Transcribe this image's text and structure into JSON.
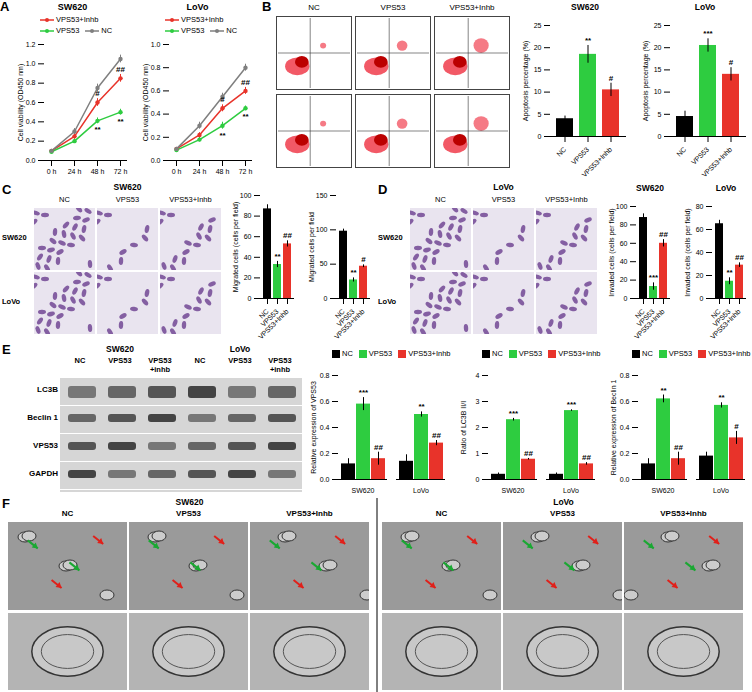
{
  "chart_data": [
    {
      "type": "line",
      "title": "SW620",
      "x": [
        "0 h",
        "24 h",
        "48 h",
        "72 h"
      ],
      "y_label": "Cell viability (OD450 nm)",
      "ylim": [
        0,
        1.2
      ],
      "yticks": [
        {
          "value": 0,
          "label": "0.0"
        },
        {
          "value": 0.2,
          "label": "0.2"
        },
        {
          "value": 0.4,
          "label": "0.4"
        },
        {
          "value": 0.6,
          "label": "0.6"
        },
        {
          "value": 0.8,
          "label": "0.8"
        },
        {
          "value": 1.0,
          "label": "1.0"
        },
        {
          "value": 1.2,
          "label": "1.2"
        }
      ],
      "legend": "top-left",
      "series": [
        {
          "name": "VPS53+Inhb",
          "color": "#e8332a",
          "marker": "circle",
          "values": [
            0.1,
            0.25,
            0.6,
            0.85
          ],
          "errors": [
            0.01,
            0.03,
            0.04,
            0.04
          ]
        },
        {
          "name": "VPS53",
          "color": "#2ecc40",
          "marker": "circle",
          "values": [
            0.09,
            0.2,
            0.41,
            0.5
          ],
          "errors": [
            0.01,
            0.02,
            0.03,
            0.03
          ]
        },
        {
          "name": "NC",
          "color": "#7f7f7f",
          "marker": "circle",
          "values": [
            0.1,
            0.3,
            0.75,
            1.05
          ],
          "errors": [
            0.01,
            0.03,
            0.04,
            0.04
          ]
        }
      ],
      "annotations": [
        {
          "series": "VPS53+Inhb",
          "x": "48 h",
          "text": "#"
        },
        {
          "series": "VPS53",
          "x": "48 h",
          "text": "**"
        },
        {
          "series": "VPS53+Inhb",
          "x": "72 h",
          "text": "##"
        },
        {
          "series": "VPS53",
          "x": "72 h",
          "text": "**"
        }
      ]
    },
    {
      "type": "line",
      "title": "LoVo",
      "x": [
        "0 h",
        "24 h",
        "48 h",
        "72 h"
      ],
      "y_label": "Cell viability (OD450 nm)",
      "ylim": [
        0,
        1.0
      ],
      "yticks": [
        {
          "value": 0,
          "label": "0.0"
        },
        {
          "value": 0.2,
          "label": "0.2"
        },
        {
          "value": 0.4,
          "label": "0.4"
        },
        {
          "value": 0.6,
          "label": "0.6"
        },
        {
          "value": 0.8,
          "label": "0.8"
        },
        {
          "value": 1.0,
          "label": "1.0"
        }
      ],
      "legend": "top-left",
      "series": [
        {
          "name": "VPS53+Inhb",
          "color": "#e8332a",
          "marker": "circle",
          "values": [
            0.1,
            0.22,
            0.45,
            0.6
          ],
          "errors": [
            0.01,
            0.02,
            0.03,
            0.03
          ]
        },
        {
          "name": "VPS53",
          "color": "#2ecc40",
          "marker": "circle",
          "values": [
            0.09,
            0.18,
            0.3,
            0.45
          ],
          "errors": [
            0.01,
            0.02,
            0.03,
            0.02
          ]
        },
        {
          "name": "NC",
          "color": "#7f7f7f",
          "marker": "circle",
          "values": [
            0.1,
            0.3,
            0.55,
            0.8
          ],
          "errors": [
            0.01,
            0.03,
            0.03,
            0.03
          ]
        }
      ],
      "annotations": [
        {
          "series": "VPS53+Inhb",
          "x": "48 h",
          "text": "#"
        },
        {
          "series": "VPS53",
          "x": "48 h",
          "text": "**"
        },
        {
          "series": "VPS53+Inhb",
          "x": "72 h",
          "text": "##"
        },
        {
          "series": "VPS53",
          "x": "72 h",
          "text": "**"
        }
      ]
    },
    {
      "type": "bar",
      "title": "SW620",
      "categories": [
        "NC",
        "VPS53",
        "VPS53+Inhb"
      ],
      "y_label": "Apoptosis percentage (%)",
      "values": [
        4,
        18.5,
        10.5
      ],
      "errors": [
        0.6,
        2,
        1.5
      ],
      "colors": [
        "#000000",
        "#2ecc40",
        "#e8332a"
      ],
      "ylim": [
        0,
        25
      ],
      "yticks": [
        0,
        5,
        10,
        15,
        20,
        25
      ],
      "annotations": [
        {
          "category": "VPS53",
          "text": "**"
        },
        {
          "category": "VPS53+Inhb",
          "text": "#"
        }
      ]
    },
    {
      "type": "bar",
      "title": "LoVo",
      "categories": [
        "NC",
        "VPS53",
        "VPS53+Inhb"
      ],
      "y_label": "Apoptosis percentage (%)",
      "values": [
        4.5,
        20.5,
        14
      ],
      "errors": [
        1.2,
        1.5,
        1.5
      ],
      "colors": [
        "#000000",
        "#2ecc40",
        "#e8332a"
      ],
      "ylim": [
        0,
        25
      ],
      "yticks": [
        0,
        5,
        10,
        15,
        20,
        25
      ],
      "annotations": [
        {
          "category": "VPS53",
          "text": "***"
        },
        {
          "category": "VPS53+Inhb",
          "text": "#"
        }
      ]
    },
    {
      "type": "bar",
      "categories": [
        "NC",
        "VPS53",
        "VPS53+Inhb"
      ],
      "y_label": "Migrated cells (cells per field)",
      "values": [
        87,
        33,
        53
      ],
      "errors": [
        4,
        3,
        3
      ],
      "colors": [
        "#000000",
        "#2ecc40",
        "#e8332a"
      ],
      "ylim": [
        0,
        100
      ],
      "yticks": [
        0,
        20,
        40,
        60,
        80,
        100
      ],
      "annotations": [
        {
          "category": "VPS53",
          "text": "**"
        },
        {
          "category": "VPS53+Inhb",
          "text": "##"
        }
      ]
    },
    {
      "type": "bar",
      "categories": [
        "NC",
        "VPS53",
        "VPS53+Inhb"
      ],
      "y_label": "Migrated cells per field",
      "values": [
        98,
        27,
        47
      ],
      "errors": [
        3,
        3,
        2
      ],
      "colors": [
        "#000000",
        "#2ecc40",
        "#e8332a"
      ],
      "ylim": [
        0,
        150
      ],
      "yticks": [
        0,
        50,
        100,
        150
      ],
      "annotations": [
        {
          "category": "VPS53",
          "text": "**"
        },
        {
          "category": "VPS53+Inhb",
          "text": "#"
        }
      ]
    },
    {
      "type": "bar",
      "title": "SW620",
      "categories": [
        "NC",
        "VPS53",
        "VPS53+Inhb"
      ],
      "y_label": "Invaded cells (cells per field)",
      "values": [
        88,
        13,
        60
      ],
      "errors": [
        4,
        4,
        4
      ],
      "colors": [
        "#000000",
        "#2ecc40",
        "#e8332a"
      ],
      "ylim": [
        0,
        100
      ],
      "yticks": [
        0,
        20,
        40,
        60,
        80,
        100
      ],
      "annotations": [
        {
          "category": "VPS53",
          "text": "***"
        },
        {
          "category": "VPS53+Inhb",
          "text": "##"
        }
      ]
    },
    {
      "type": "bar",
      "title": "LoVo",
      "categories": [
        "NC",
        "VPS53",
        "VPS53+Inhb"
      ],
      "y_label": "Invaded cells (cells per field)",
      "values": [
        65,
        15,
        29
      ],
      "errors": [
        3,
        3,
        2
      ],
      "colors": [
        "#000000",
        "#2ecc40",
        "#e8332a"
      ],
      "ylim": [
        0,
        80
      ],
      "yticks": [
        0,
        20,
        40,
        60,
        80
      ],
      "annotations": [
        {
          "category": "VPS53",
          "text": "**"
        },
        {
          "category": "VPS53+Inhb",
          "text": "##"
        }
      ]
    },
    {
      "type": "bar",
      "categories": [
        "SW620",
        "LoVo"
      ],
      "y_label": "Relative expression of VPS53",
      "legend": "top-left",
      "ylim": [
        0,
        0.8
      ],
      "yticks": [
        {
          "value": 0,
          "label": "0.0"
        },
        {
          "value": 0.2,
          "label": "0.2"
        },
        {
          "value": 0.4,
          "label": "0.4"
        },
        {
          "value": 0.6,
          "label": "0.6"
        },
        {
          "value": 0.8,
          "label": "0.8"
        }
      ],
      "series": [
        {
          "name": "NC",
          "color": "#000000",
          "values": [
            0.12,
            0.14
          ],
          "errors": [
            0.04,
            0.05
          ]
        },
        {
          "name": "VPS53",
          "color": "#2ecc40",
          "values": [
            0.58,
            0.5
          ],
          "errors": [
            0.05,
            0.02
          ]
        },
        {
          "name": "VPS53+Inhb",
          "color": "#e8332a",
          "values": [
            0.16,
            0.28
          ],
          "errors": [
            0.05,
            0.02
          ]
        }
      ],
      "annotations": [
        {
          "category": "SW620",
          "series": "VPS53",
          "text": "***"
        },
        {
          "category": "LoVo",
          "series": "VPS53",
          "text": "**"
        },
        {
          "category": "SW620",
          "series": "VPS53+Inhb",
          "text": "##"
        },
        {
          "category": "LoVo",
          "series": "VPS53+Inhb",
          "text": "##"
        }
      ]
    },
    {
      "type": "bar",
      "categories": [
        "SW620",
        "LoVo"
      ],
      "y_label": "Ratio of LC3B II/I",
      "legend": "top-left",
      "ylim": [
        0,
        4
      ],
      "yticks": [
        0,
        1,
        2,
        3,
        4
      ],
      "series": [
        {
          "name": "NC",
          "color": "#000000",
          "values": [
            0.2,
            0.2
          ],
          "errors": [
            0.05,
            0.05
          ]
        },
        {
          "name": "VPS53",
          "color": "#2ecc40",
          "values": [
            2.3,
            2.65
          ],
          "errors": [
            0.05,
            0.03
          ]
        },
        {
          "name": "VPS53+Inhb",
          "color": "#e8332a",
          "values": [
            0.78,
            0.6
          ],
          "errors": [
            0.03,
            0.05
          ]
        }
      ],
      "annotations": [
        {
          "category": "SW620",
          "series": "VPS53",
          "text": "***"
        },
        {
          "category": "LoVo",
          "series": "VPS53",
          "text": "***"
        },
        {
          "category": "SW620",
          "series": "VPS53+Inhb",
          "text": "##"
        },
        {
          "category": "LoVo",
          "series": "VPS53+Inhb",
          "text": "##"
        }
      ]
    },
    {
      "type": "bar",
      "categories": [
        "SW620",
        "LoVo"
      ],
      "y_label": "Relative expression of Beclin 1",
      "legend": "top-left",
      "ylim": [
        0,
        0.8
      ],
      "yticks": [
        {
          "value": 0,
          "label": "0.0"
        },
        {
          "value": 0.2,
          "label": "0.2"
        },
        {
          "value": 0.4,
          "label": "0.4"
        },
        {
          "value": 0.6,
          "label": "0.6"
        },
        {
          "value": 0.8,
          "label": "0.8"
        }
      ],
      "series": [
        {
          "name": "NC",
          "color": "#000000",
          "values": [
            0.12,
            0.18
          ],
          "errors": [
            0.04,
            0.03
          ]
        },
        {
          "name": "VPS53",
          "color": "#2ecc40",
          "values": [
            0.62,
            0.57
          ],
          "errors": [
            0.03,
            0.02
          ]
        },
        {
          "name": "VPS53+Inhb",
          "color": "#e8332a",
          "values": [
            0.16,
            0.32
          ],
          "errors": [
            0.05,
            0.05
          ]
        }
      ],
      "annotations": [
        {
          "category": "SW620",
          "series": "VPS53",
          "text": "**"
        },
        {
          "category": "LoVo",
          "series": "VPS53",
          "text": "**"
        },
        {
          "category": "SW620",
          "series": "VPS53+Inhb",
          "text": "##"
        },
        {
          "category": "LoVo",
          "series": "VPS53+Inhb",
          "text": "#"
        }
      ]
    }
  ],
  "figure": {
    "panel_labels": [
      "A",
      "B",
      "C",
      "D",
      "E",
      "F"
    ],
    "B": {
      "columns": [
        "NC",
        "VPS53",
        "VPS53+Inhb"
      ]
    },
    "C": {
      "title": "SW620",
      "columns": [
        "NC",
        "VPS53",
        "VPS53+Inhb"
      ],
      "rows": [
        "SW620",
        "LoVo"
      ]
    },
    "D": {
      "title": "LoVo",
      "columns": [
        "NC",
        "VPS53",
        "VPS53+Inhb"
      ],
      "rows": [
        "SW620",
        "LoVo"
      ]
    },
    "E": {
      "groups": [
        "SW620",
        "LoVo"
      ],
      "columns": [
        "NC",
        "VPS53",
        "VPS53 +inhb"
      ],
      "rows": [
        "LC3B",
        "Beclin 1",
        "VPS53",
        "GAPDH"
      ]
    },
    "F": {
      "groups": [
        "SW620",
        "LoVo"
      ],
      "columns": [
        "NC",
        "VPS53",
        "VPS53+Inhb"
      ]
    }
  }
}
